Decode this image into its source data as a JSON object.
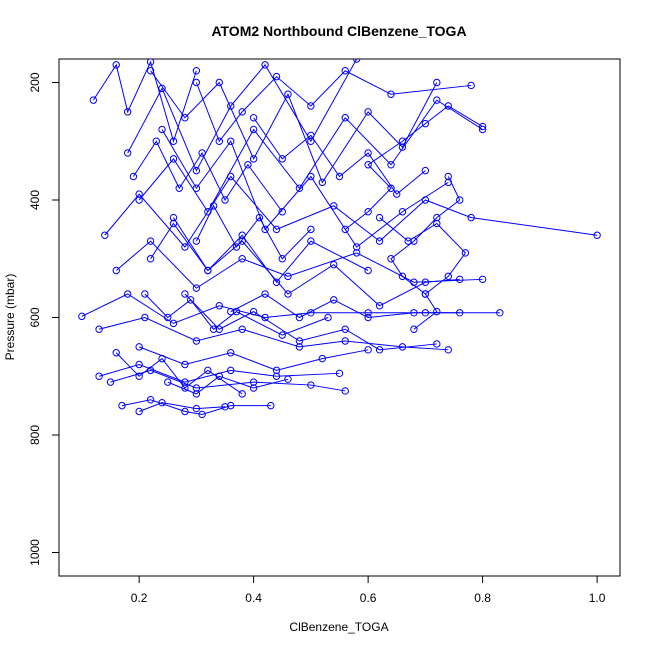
{
  "chart_data": {
    "type": "line",
    "title": "ATOM2 Northbound ClBenzene_TOGA",
    "xlabel": "ClBenzene_TOGA",
    "ylabel": "Pressure (mbar)",
    "xlim": [
      0.06,
      1.04
    ],
    "ylim": [
      1040,
      160
    ],
    "y_reversed": true,
    "grid": false,
    "legend": "none",
    "x_ticks": [
      "0.2",
      "0.4",
      "0.6",
      "0.8",
      "1.0"
    ],
    "x_tick_values": [
      0.2,
      0.4,
      0.6,
      0.8,
      1.0
    ],
    "y_ticks": [
      "200",
      "400",
      "600",
      "800",
      "1000"
    ],
    "y_tick_values": [
      200,
      400,
      600,
      800,
      1000
    ],
    "color": "#0000ff",
    "series": [
      {
        "values": [
          [
            0.12,
            230
          ],
          [
            0.16,
            170
          ],
          [
            0.18,
            250
          ],
          [
            0.22,
            165
          ],
          [
            0.26,
            300
          ],
          [
            0.3,
            180
          ]
        ]
      },
      {
        "values": [
          [
            0.18,
            320
          ],
          [
            0.24,
            210
          ],
          [
            0.3,
            350
          ],
          [
            0.36,
            240
          ],
          [
            0.42,
            170
          ],
          [
            0.5,
            300
          ],
          [
            0.58,
            160
          ]
        ]
      },
      {
        "values": [
          [
            0.2,
            400
          ],
          [
            0.26,
            330
          ],
          [
            0.32,
            420
          ],
          [
            0.4,
            280
          ],
          [
            0.48,
            380
          ],
          [
            0.56,
            260
          ],
          [
            0.64,
            340
          ],
          [
            0.72,
            230
          ],
          [
            0.8,
            280
          ]
        ]
      },
      {
        "values": [
          [
            0.14,
            460
          ],
          [
            0.2,
            390
          ],
          [
            0.28,
            480
          ],
          [
            0.36,
            360
          ],
          [
            0.44,
            450
          ],
          [
            0.54,
            410
          ],
          [
            0.62,
            470
          ],
          [
            0.7,
            400
          ],
          [
            0.78,
            430
          ],
          [
            1.0,
            460
          ]
        ]
      },
      {
        "values": [
          [
            0.16,
            520
          ],
          [
            0.22,
            470
          ],
          [
            0.3,
            550
          ],
          [
            0.38,
            500
          ],
          [
            0.46,
            530
          ],
          [
            0.58,
            490
          ],
          [
            0.68,
            540
          ],
          [
            0.8,
            535
          ]
        ]
      },
      {
        "values": [
          [
            0.1,
            598
          ],
          [
            0.18,
            560
          ],
          [
            0.26,
            610
          ],
          [
            0.34,
            580
          ],
          [
            0.42,
            600
          ],
          [
            0.5,
            592
          ],
          [
            0.6,
            592
          ],
          [
            0.7,
            592
          ],
          [
            0.83,
            592
          ]
        ]
      },
      {
        "values": [
          [
            0.13,
            620
          ],
          [
            0.21,
            600
          ],
          [
            0.3,
            640
          ],
          [
            0.38,
            620
          ],
          [
            0.48,
            650
          ],
          [
            0.56,
            640
          ],
          [
            0.66,
            650
          ],
          [
            0.74,
            655
          ]
        ]
      },
      {
        "values": [
          [
            0.13,
            700
          ],
          [
            0.2,
            680
          ],
          [
            0.28,
            710
          ],
          [
            0.36,
            690
          ],
          [
            0.44,
            700
          ],
          [
            0.55,
            695
          ]
        ]
      },
      {
        "values": [
          [
            0.15,
            710
          ],
          [
            0.22,
            690
          ],
          [
            0.3,
            720
          ],
          [
            0.4,
            710
          ],
          [
            0.5,
            715
          ],
          [
            0.56,
            725
          ]
        ]
      },
      {
        "values": [
          [
            0.17,
            750
          ],
          [
            0.22,
            740
          ],
          [
            0.28,
            760
          ],
          [
            0.31,
            765
          ],
          [
            0.36,
            750
          ],
          [
            0.43,
            750
          ]
        ]
      },
      {
        "values": [
          [
            0.2,
            760
          ],
          [
            0.24,
            745
          ],
          [
            0.3,
            755
          ],
          [
            0.35,
            752
          ]
        ]
      },
      {
        "values": [
          [
            0.22,
            180
          ],
          [
            0.28,
            260
          ],
          [
            0.34,
            200
          ],
          [
            0.4,
            330
          ],
          [
            0.46,
            220
          ],
          [
            0.52,
            370
          ],
          [
            0.6,
            250
          ],
          [
            0.66,
            310
          ],
          [
            0.72,
            200
          ]
        ]
      },
      {
        "values": [
          [
            0.24,
            280
          ],
          [
            0.3,
            380
          ],
          [
            0.36,
            300
          ],
          [
            0.42,
            450
          ],
          [
            0.5,
            360
          ],
          [
            0.58,
            480
          ],
          [
            0.66,
            420
          ],
          [
            0.74,
            370
          ]
        ]
      },
      {
        "values": [
          [
            0.26,
            430
          ],
          [
            0.32,
            520
          ],
          [
            0.38,
            470
          ],
          [
            0.46,
            560
          ],
          [
            0.54,
            510
          ],
          [
            0.62,
            580
          ],
          [
            0.7,
            540
          ],
          [
            0.76,
            535
          ]
        ]
      },
      {
        "values": [
          [
            0.28,
            560
          ],
          [
            0.34,
            620
          ],
          [
            0.4,
            590
          ],
          [
            0.48,
            640
          ],
          [
            0.56,
            620
          ],
          [
            0.62,
            655
          ],
          [
            0.72,
            645
          ]
        ]
      },
      {
        "values": [
          [
            0.2,
            650
          ],
          [
            0.28,
            680
          ],
          [
            0.36,
            660
          ],
          [
            0.44,
            690
          ],
          [
            0.52,
            670
          ],
          [
            0.6,
            655
          ]
        ]
      },
      {
        "values": [
          [
            0.3,
            200
          ],
          [
            0.34,
            300
          ],
          [
            0.38,
            250
          ],
          [
            0.44,
            190
          ],
          [
            0.5,
            240
          ],
          [
            0.56,
            180
          ],
          [
            0.64,
            220
          ],
          [
            0.78,
            205
          ]
        ]
      },
      {
        "values": [
          [
            0.22,
            500
          ],
          [
            0.26,
            440
          ],
          [
            0.32,
            520
          ],
          [
            0.38,
            460
          ],
          [
            0.44,
            540
          ],
          [
            0.5,
            470
          ],
          [
            0.6,
            520
          ]
        ]
      },
      {
        "values": [
          [
            0.68,
            620
          ],
          [
            0.72,
            590
          ],
          [
            0.7,
            560
          ],
          [
            0.66,
            530
          ],
          [
            0.64,
            500
          ],
          [
            0.68,
            470
          ],
          [
            0.72,
            430
          ],
          [
            0.76,
            400
          ],
          [
            0.74,
            360
          ]
        ]
      },
      {
        "values": [
          [
            0.56,
            450
          ],
          [
            0.6,
            420
          ],
          [
            0.64,
            380
          ],
          [
            0.6,
            340
          ],
          [
            0.66,
            300
          ],
          [
            0.7,
            270
          ],
          [
            0.74,
            240
          ],
          [
            0.8,
            275
          ]
        ]
      },
      {
        "values": [
          [
            0.36,
            590
          ],
          [
            0.42,
            560
          ],
          [
            0.48,
            600
          ],
          [
            0.54,
            570
          ],
          [
            0.6,
            600
          ],
          [
            0.68,
            592
          ],
          [
            0.76,
            592
          ]
        ]
      },
      {
        "values": [
          [
            0.25,
            710
          ],
          [
            0.3,
            730
          ],
          [
            0.34,
            700
          ],
          [
            0.4,
            720
          ],
          [
            0.46,
            705
          ]
        ]
      },
      {
        "values": [
          [
            0.19,
            360
          ],
          [
            0.23,
            300
          ],
          [
            0.27,
            380
          ],
          [
            0.31,
            320
          ],
          [
            0.35,
            400
          ],
          [
            0.39,
            340
          ],
          [
            0.45,
            420
          ]
        ]
      },
      {
        "values": [
          [
            0.21,
            560
          ],
          [
            0.25,
            600
          ],
          [
            0.29,
            570
          ],
          [
            0.33,
            620
          ],
          [
            0.37,
            590
          ],
          [
            0.45,
            630
          ],
          [
            0.53,
            600
          ]
        ]
      },
      {
        "values": [
          [
            0.16,
            660
          ],
          [
            0.2,
            700
          ],
          [
            0.24,
            670
          ],
          [
            0.28,
            720
          ],
          [
            0.32,
            690
          ],
          [
            0.38,
            730
          ]
        ]
      },
      {
        "values": [
          [
            0.4,
            260
          ],
          [
            0.45,
            330
          ],
          [
            0.5,
            290
          ],
          [
            0.55,
            360
          ],
          [
            0.6,
            320
          ],
          [
            0.65,
            390
          ],
          [
            0.7,
            350
          ]
        ]
      },
      {
        "values": [
          [
            0.62,
            430
          ],
          [
            0.67,
            470
          ],
          [
            0.72,
            440
          ],
          [
            0.77,
            490
          ],
          [
            0.74,
            530
          ],
          [
            0.7,
            560
          ]
        ]
      },
      {
        "values": [
          [
            0.3,
            470
          ],
          [
            0.33,
            410
          ],
          [
            0.37,
            480
          ],
          [
            0.41,
            430
          ],
          [
            0.45,
            500
          ],
          [
            0.5,
            450
          ]
        ]
      }
    ]
  }
}
